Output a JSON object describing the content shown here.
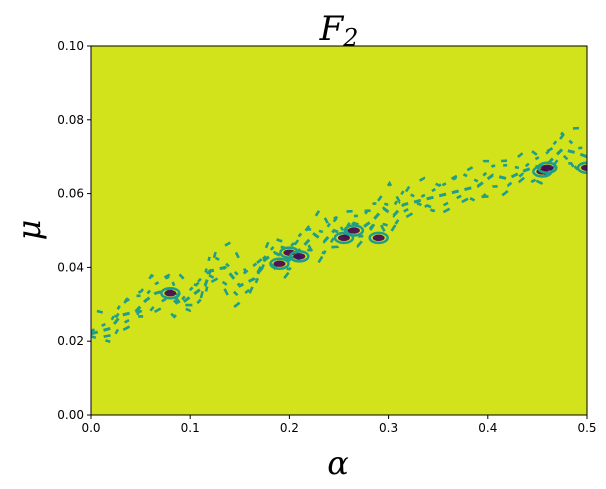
{
  "chart_data": {
    "type": "heatmap",
    "title": "F",
    "title_subscript": "2",
    "xlabel": "α",
    "ylabel": "μ",
    "xlim": [
      0.0,
      0.5
    ],
    "ylim": [
      0.0,
      0.1
    ],
    "x_ticks": [
      "0.0",
      "0.1",
      "0.2",
      "0.3",
      "0.4",
      "0.5"
    ],
    "y_ticks": [
      "0.00",
      "0.02",
      "0.04",
      "0.06",
      "0.08",
      "0.10"
    ],
    "grid": false,
    "colors": {
      "background": "#d2e21b",
      "mid": "#1f9e89",
      "low": "#440154",
      "dark_mid": "#3b528b"
    },
    "teal_band": [
      [
        0.0,
        0.022
      ],
      [
        0.02,
        0.0235
      ],
      [
        0.03,
        0.027
      ],
      [
        0.045,
        0.028
      ],
      [
        0.055,
        0.031
      ],
      [
        0.065,
        0.033
      ],
      [
        0.08,
        0.034
      ],
      [
        0.09,
        0.03
      ],
      [
        0.1,
        0.032
      ],
      [
        0.115,
        0.035
      ],
      [
        0.12,
        0.039
      ],
      [
        0.135,
        0.04
      ],
      [
        0.15,
        0.035
      ],
      [
        0.165,
        0.037
      ],
      [
        0.175,
        0.042
      ],
      [
        0.185,
        0.044
      ],
      [
        0.2,
        0.042
      ],
      [
        0.215,
        0.046
      ],
      [
        0.225,
        0.049
      ],
      [
        0.235,
        0.047
      ],
      [
        0.245,
        0.05
      ],
      [
        0.255,
        0.049
      ],
      [
        0.265,
        0.052
      ],
      [
        0.275,
        0.051
      ],
      [
        0.285,
        0.053
      ],
      [
        0.295,
        0.056
      ],
      [
        0.305,
        0.054
      ],
      [
        0.315,
        0.057
      ],
      [
        0.33,
        0.058
      ],
      [
        0.345,
        0.059
      ],
      [
        0.36,
        0.06
      ],
      [
        0.375,
        0.061
      ],
      [
        0.39,
        0.062
      ],
      [
        0.405,
        0.065
      ],
      [
        0.42,
        0.064
      ],
      [
        0.435,
        0.066
      ],
      [
        0.445,
        0.067
      ],
      [
        0.46,
        0.068
      ],
      [
        0.475,
        0.072
      ],
      [
        0.49,
        0.071
      ],
      [
        0.5,
        0.07
      ]
    ],
    "purple_spots": [
      [
        0.08,
        0.033
      ],
      [
        0.19,
        0.041
      ],
      [
        0.2,
        0.044
      ],
      [
        0.21,
        0.043
      ],
      [
        0.255,
        0.048
      ],
      [
        0.265,
        0.05
      ],
      [
        0.29,
        0.048
      ],
      [
        0.455,
        0.066
      ],
      [
        0.46,
        0.067
      ],
      [
        0.5,
        0.067
      ]
    ]
  }
}
